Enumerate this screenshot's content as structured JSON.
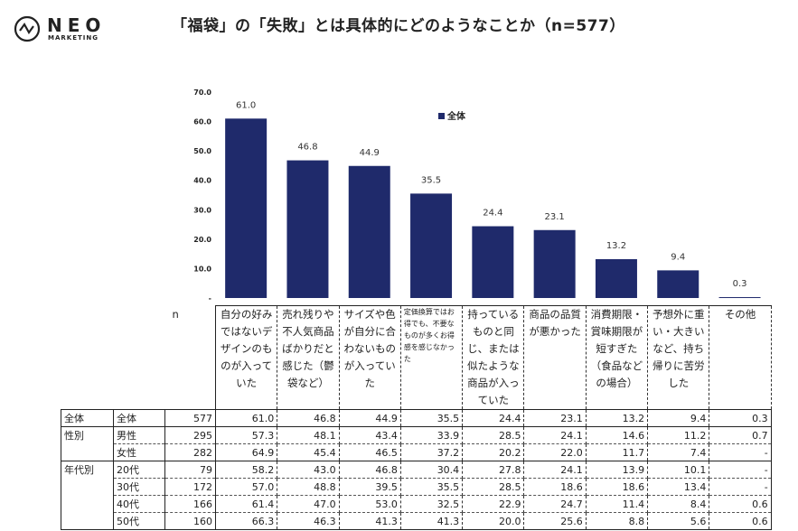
{
  "logo": {
    "name": "NEO",
    "sub": "MARKETING"
  },
  "title": "「福袋」の「失敗」とは具体的にどのようなことか（n=577）",
  "chart_data": {
    "type": "bar",
    "categories": [
      "自分の好みではないデザインのものが入っていた",
      "売れ残りや不人気商品ばかりだと感じた（鬱袋など）",
      "サイズや色が自分に合わないものが入っていた",
      "定価換算ではお得でも、不要なものが多くお得感を感じなかった",
      "持っているものと同じ、または似たような商品が入っていた",
      "商品の品質が悪かった",
      "消費期限・賞味期限が短すぎた（食品などの場合）",
      "予想外に重い・大きいなど、持ち帰りに苦労した",
      "その他"
    ],
    "series": [
      {
        "name": "全体",
        "values": [
          61.0,
          46.8,
          44.9,
          35.5,
          24.4,
          23.1,
          13.2,
          9.4,
          0.3
        ]
      }
    ],
    "ylim": [
      0,
      70
    ],
    "yticks": [
      "-",
      "10.0",
      "20.0",
      "30.0",
      "40.0",
      "50.0",
      "60.0",
      "70.0"
    ],
    "legend": "top-right",
    "color": "#1f2a6b"
  },
  "table": {
    "n_label": "n",
    "rows": [
      {
        "group": "全体",
        "sub": "全体",
        "n": "577",
        "v": [
          "61.0",
          "46.8",
          "44.9",
          "35.5",
          "24.4",
          "23.1",
          "13.2",
          "9.4",
          "0.3"
        ]
      },
      {
        "group": "性別",
        "sub": "男性",
        "n": "295",
        "v": [
          "57.3",
          "48.1",
          "43.4",
          "33.9",
          "28.5",
          "24.1",
          "14.6",
          "11.2",
          "0.7"
        ]
      },
      {
        "group": "",
        "sub": "女性",
        "n": "282",
        "v": [
          "64.9",
          "45.4",
          "46.5",
          "37.2",
          "20.2",
          "22.0",
          "11.7",
          "7.4",
          "-"
        ]
      },
      {
        "group": "年代別",
        "sub": "20代",
        "n": "79",
        "v": [
          "58.2",
          "43.0",
          "46.8",
          "30.4",
          "27.8",
          "24.1",
          "13.9",
          "10.1",
          "-"
        ]
      },
      {
        "group": "",
        "sub": "30代",
        "n": "172",
        "v": [
          "57.0",
          "48.8",
          "39.5",
          "35.5",
          "28.5",
          "18.6",
          "18.6",
          "13.4",
          "-"
        ]
      },
      {
        "group": "",
        "sub": "40代",
        "n": "166",
        "v": [
          "61.4",
          "47.0",
          "53.0",
          "32.5",
          "22.9",
          "24.7",
          "11.4",
          "8.4",
          "0.6"
        ]
      },
      {
        "group": "",
        "sub": "50代",
        "n": "160",
        "v": [
          "66.3",
          "46.3",
          "41.3",
          "41.3",
          "20.0",
          "25.6",
          "8.8",
          "5.6",
          "0.6"
        ]
      }
    ]
  }
}
